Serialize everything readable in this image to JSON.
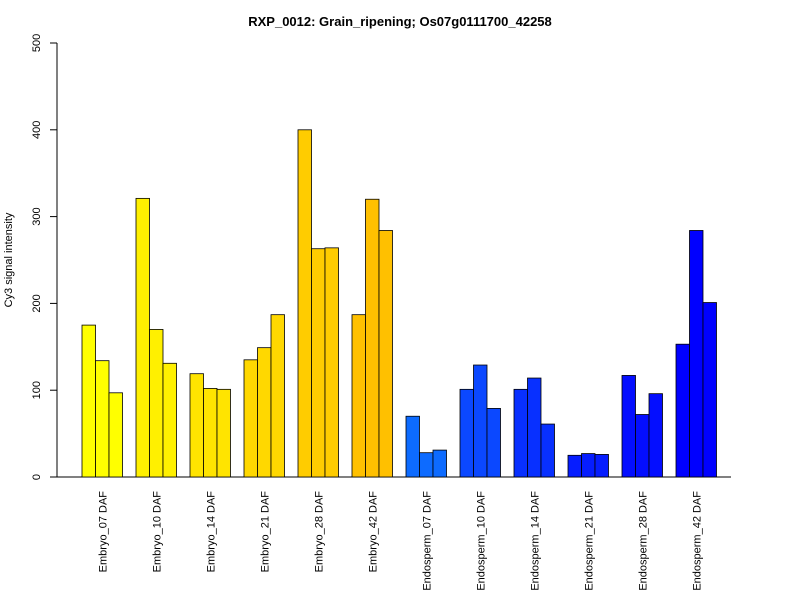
{
  "chart_data": {
    "type": "bar",
    "title": "RXP_0012: Grain_ripening; Os07g0111700_42258",
    "xlabel": "",
    "ylabel": "Cy3 signal intensity",
    "ylim": [
      0,
      500
    ],
    "yticks": [
      0,
      100,
      200,
      300,
      400,
      500
    ],
    "grid": false,
    "categories": [
      "Embryo_07 DAF",
      "Embryo_10 DAF",
      "Embryo_14 DAF",
      "Embryo_21 DAF",
      "Embryo_28 DAF",
      "Embryo_42 DAF",
      "Endosperm_07 DAF",
      "Endosperm_10 DAF",
      "Endosperm_14 DAF",
      "Endosperm_21 DAF",
      "Endosperm_28 DAF",
      "Endosperm_42 DAF"
    ],
    "replicates_per_category": 3,
    "values": [
      [
        175,
        134,
        97
      ],
      [
        321,
        170,
        131
      ],
      [
        119,
        102,
        101
      ],
      [
        135,
        149,
        187
      ],
      [
        400,
        263,
        264
      ],
      [
        187,
        320,
        284
      ],
      [
        70,
        28,
        31
      ],
      [
        101,
        129,
        79
      ],
      [
        101,
        114,
        61
      ],
      [
        25,
        27,
        26
      ],
      [
        117,
        72,
        96
      ],
      [
        153,
        284,
        201
      ]
    ],
    "colors": [
      "#FFFF00",
      "#FFF000",
      "#FFE400",
      "#FFD800",
      "#FFCC00",
      "#FFC000",
      "#0D6BFF",
      "#0B48FF",
      "#0830FF",
      "#061DFF",
      "#040EFF",
      "#0000FF"
    ]
  }
}
